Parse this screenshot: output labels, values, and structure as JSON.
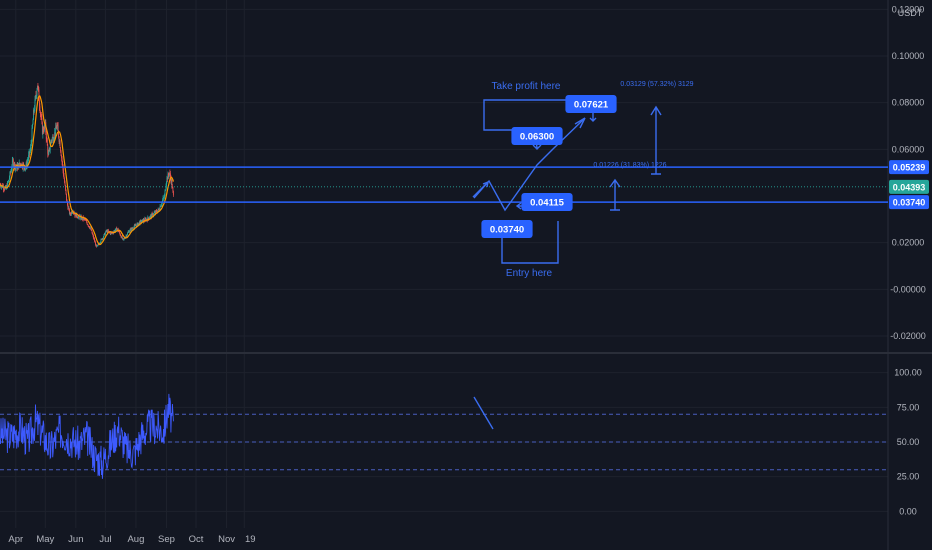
{
  "colors": {
    "background": "#131722",
    "grid": "#1e222d",
    "axis_text": "#b2b5be",
    "level_line": "#2962ff",
    "drawing": "#3a6df0",
    "label_bg": "#2962ff",
    "candle_up": "#26a69a",
    "candle_down": "#ef5350",
    "ma": "#ff9800",
    "rsi": "#3d5afe",
    "current_price_bg": "#26a69a"
  },
  "chart_data": {
    "type": "candlestick",
    "currency": "USDT",
    "x_ticks": [
      "Apr",
      "May",
      "Jun",
      "Jul",
      "Aug",
      "Sep",
      "Oct",
      "Nov",
      "19"
    ],
    "price_axis": {
      "ylim": [
        -0.026,
        0.124
      ],
      "ticks": [
        "0.12000",
        "0.10000",
        "0.08000",
        "0.06000",
        "0.02000",
        "-0.00000",
        "-0.02000"
      ],
      "tick_values": [
        0.12,
        0.1,
        0.08,
        0.06,
        0.02,
        0.0,
        -0.02
      ]
    },
    "price_path_days": [
      -16,
      -10,
      -7,
      -3,
      0,
      5,
      10,
      15,
      18,
      22,
      27,
      30,
      33,
      36,
      39,
      42,
      45,
      48,
      52,
      55,
      58,
      60,
      64,
      70,
      76,
      82,
      88,
      92,
      97,
      103,
      109,
      115,
      121,
      127,
      133,
      139,
      145,
      151,
      153,
      156,
      158,
      160
    ],
    "price_path_values": [
      0.045,
      0.043,
      0.047,
      0.055,
      0.052,
      0.054,
      0.052,
      0.06,
      0.075,
      0.088,
      0.068,
      0.07,
      0.057,
      0.064,
      0.066,
      0.07,
      0.062,
      0.051,
      0.037,
      0.032,
      0.034,
      0.032,
      0.031,
      0.03,
      0.026,
      0.018,
      0.022,
      0.025,
      0.024,
      0.026,
      0.021,
      0.025,
      0.027,
      0.029,
      0.03,
      0.032,
      0.034,
      0.04,
      0.047,
      0.05,
      0.046,
      0.04
    ],
    "levels": [
      {
        "value": 0.05239,
        "label": "0.05239"
      },
      {
        "value": 0.0374,
        "label": "0.03740"
      }
    ],
    "current_price": {
      "value": 0.04393,
      "label": "0.04393"
    },
    "labels": {
      "entry": "Entry here",
      "take_profit": "Take profit here",
      "box_low": "0.03740",
      "box_entry": "0.04115",
      "box_mid": "0.06300",
      "box_high": "0.07621",
      "measure_small": "0.01226 (31.83%) 1226",
      "measure_large": "0.03129 (57.32%) 3129"
    },
    "rsi": {
      "ylim": [
        -12,
        112
      ],
      "ticks": [
        "100.00",
        "75.00",
        "50.00",
        "25.00",
        "0.00"
      ],
      "tick_values": [
        100,
        75,
        50,
        25,
        0
      ],
      "bands": [
        70,
        50,
        30
      ],
      "path_days": [
        -16,
        -5,
        5,
        12,
        20,
        28,
        35,
        45,
        55,
        65,
        72,
        80,
        88,
        96,
        104,
        112,
        120,
        128,
        136,
        144,
        150,
        155,
        160
      ],
      "path_values": [
        56,
        54,
        60,
        50,
        65,
        55,
        45,
        58,
        52,
        48,
        54,
        40,
        35,
        48,
        60,
        45,
        42,
        55,
        62,
        60,
        58,
        75,
        62
      ]
    }
  }
}
